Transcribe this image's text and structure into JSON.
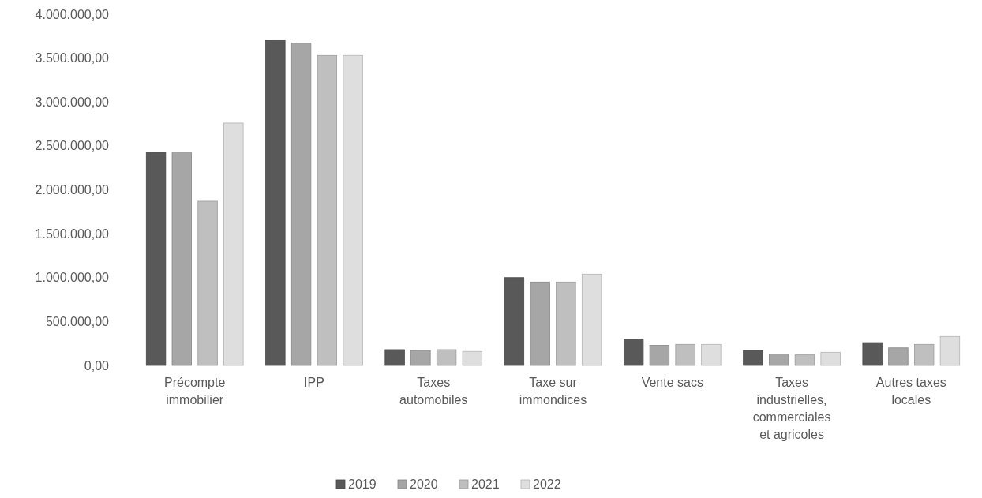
{
  "chart_data": {
    "type": "bar",
    "categories": [
      "Précompte immobilier",
      "IPP",
      "Taxes automobiles",
      "Taxe sur immondices",
      "Vente sacs",
      "Taxes industrielles, commerciales et agricoles",
      "Autres taxes locales"
    ],
    "series": [
      {
        "name": "2019",
        "color": "#595959",
        "values": [
          2430000,
          3700000,
          180000,
          1000000,
          300000,
          170000,
          260000
        ]
      },
      {
        "name": "2020",
        "color": "#a6a6a6",
        "values": [
          2430000,
          3670000,
          170000,
          950000,
          230000,
          130000,
          200000
        ]
      },
      {
        "name": "2021",
        "color": "#bfbfbf",
        "values": [
          1870000,
          3530000,
          180000,
          950000,
          240000,
          120000,
          240000
        ]
      },
      {
        "name": "2022",
        "color": "#dedede",
        "values": [
          2760000,
          3530000,
          160000,
          1040000,
          240000,
          150000,
          330000
        ]
      }
    ],
    "ylim": [
      0,
      4000000
    ],
    "yticks": [
      {
        "value": 0,
        "label": "0,00"
      },
      {
        "value": 500000,
        "label": "500.000,00"
      },
      {
        "value": 1000000,
        "label": "1.000.000,00"
      },
      {
        "value": 1500000,
        "label": "1.500.000,00"
      },
      {
        "value": 2000000,
        "label": "2.000.000,00"
      },
      {
        "value": 2500000,
        "label": "2.500.000,00"
      },
      {
        "value": 3000000,
        "label": "3.000.000,00"
      },
      {
        "value": 3500000,
        "label": "3.500.000,00"
      },
      {
        "value": 4000000,
        "label": "4.000.000,00"
      }
    ],
    "grid": false,
    "legend": "bottom"
  }
}
